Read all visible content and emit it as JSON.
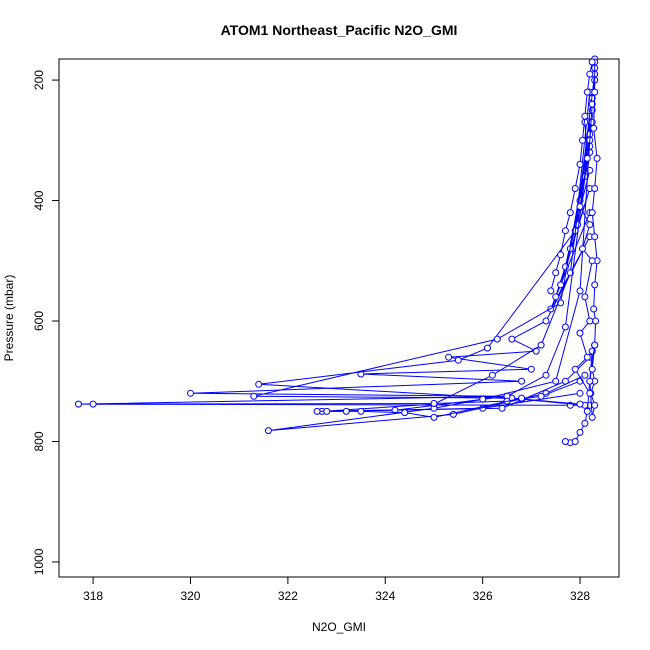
{
  "chart_data": {
    "type": "line",
    "title": "ATOM1 Northeast_Pacific N2O_GMI",
    "xlabel": "N2O_GMI",
    "ylabel": "Pressure (mbar)",
    "xlim": [
      317.3,
      328.8
    ],
    "ylim": [
      1025,
      165
    ],
    "y_reversed": true,
    "x_ticks": [
      318,
      320,
      322,
      324,
      326,
      328
    ],
    "y_ticks": [
      200,
      400,
      600,
      800,
      1000
    ],
    "grid": false,
    "legend": "none",
    "colors": {
      "series": "#0000ff",
      "axis": "#000000",
      "background": "#ffffff"
    },
    "series": [
      {
        "x": [
          328.3,
          328.25,
          328.3,
          328.2,
          328.3,
          328.1,
          328.25,
          328.0,
          328.2,
          327.95,
          328.2,
          327.8,
          328.2,
          327.7,
          328.2,
          327.6,
          328.2,
          327.5,
          328.2,
          327.4,
          328.2,
          327.3,
          326.6,
          327.1,
          325.3,
          327.0,
          323.5,
          326.8,
          320.0,
          326.5,
          317.7,
          327.8,
          328.2
        ],
        "y": [
          165,
          250,
          180,
          310,
          200,
          360,
          230,
          400,
          260,
          440,
          290,
          480,
          320,
          510,
          350,
          540,
          380,
          560,
          420,
          580,
          460,
          600,
          630,
          650,
          660,
          680,
          688,
          700,
          720,
          725,
          738,
          740,
          740
        ]
      },
      {
        "x": [
          328.2,
          327.9,
          326.1,
          325.5,
          321.4,
          326.8,
          328.1
        ],
        "y": [
          220,
          450,
          645,
          665,
          705,
          730,
          740
        ]
      },
      {
        "x": [
          328.25,
          327.6,
          326.3,
          321.3,
          326.6,
          328.0
        ],
        "y": [
          270,
          570,
          630,
          725,
          728,
          738
        ]
      },
      {
        "x": [
          328.3,
          327.8,
          327.2,
          326.2,
          325.0,
          322.7,
          326.4,
          327.7,
          328.2
        ],
        "y": [
          190,
          520,
          640,
          690,
          738,
          750,
          745,
          700,
          660
        ]
      },
      {
        "x": [
          328.2,
          327.7,
          327.3,
          326.5,
          324.2,
          322.6,
          326.0,
          328.0
        ],
        "y": [
          300,
          610,
          690,
          725,
          748,
          750,
          745,
          720
        ]
      },
      {
        "x": [
          328.25,
          328.0,
          327.5,
          326.0,
          325.0,
          321.6,
          325.4,
          327.3,
          328.1
        ],
        "y": [
          240,
          550,
          700,
          730,
          745,
          782,
          755,
          720,
          690
        ]
      },
      {
        "x": [
          318.0,
          325.0,
          326.5,
          327.2,
          328.0
        ],
        "y": [
          738,
          737,
          733,
          725,
          700
        ]
      },
      {
        "x": [
          322.8,
          323.2,
          323.5,
          324.4,
          325.0,
          326.8
        ],
        "y": [
          750,
          750,
          750,
          752,
          760,
          728
        ]
      },
      {
        "x": [
          327.8,
          327.7,
          327.9,
          328.0,
          328.1,
          328.15,
          328.2,
          328.25
        ],
        "y": [
          802,
          800,
          800,
          785,
          770,
          750,
          700,
          650
        ]
      },
      {
        "x": [
          328.3,
          328.3,
          328.28,
          328.35,
          328.3,
          328.25,
          328.3,
          328.35,
          328.3,
          328.28,
          328.32,
          328.3,
          328.25,
          328.3,
          328.22,
          328.3,
          328.25,
          328.2,
          328.3
        ],
        "y": [
          170,
          220,
          280,
          330,
          380,
          420,
          460,
          500,
          540,
          580,
          600,
          640,
          680,
          700,
          720,
          740,
          760,
          700,
          640
        ]
      },
      {
        "x": [
          328.1,
          328.15,
          328.0,
          328.2,
          328.05,
          328.25,
          328.1,
          328.2,
          328.0,
          328.15,
          327.9,
          328.2
        ],
        "y": [
          270,
          330,
          410,
          440,
          480,
          500,
          560,
          600,
          620,
          660,
          680,
          720
        ]
      },
      {
        "x": [
          327.4,
          327.5,
          327.6,
          327.7,
          327.8,
          327.9,
          328.0,
          328.05,
          328.1,
          328.15,
          328.2,
          328.25
        ],
        "y": [
          550,
          520,
          490,
          450,
          420,
          380,
          340,
          300,
          260,
          220,
          190,
          170
        ]
      }
    ]
  }
}
